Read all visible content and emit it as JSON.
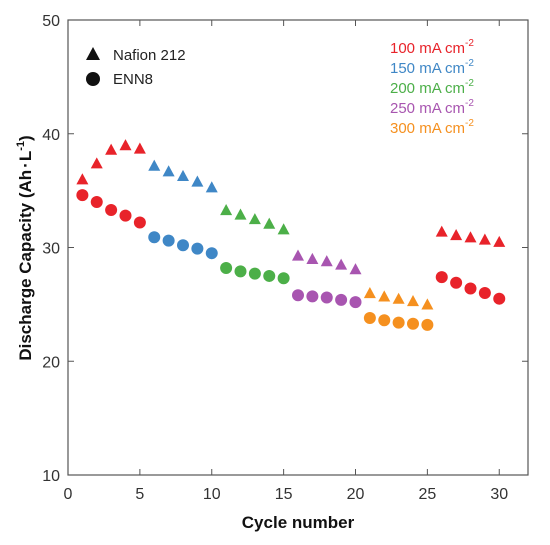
{
  "chart_data": {
    "type": "scatter",
    "title": "",
    "xlabel": "Cycle number",
    "ylabel_main": "Discharge Capacity (Ah",
    "ylabel_dot": "·",
    "ylabel_unit": "L",
    "ylabel_sup": "-1",
    "ylabel_end": ")",
    "xlim": [
      0,
      32
    ],
    "ylim": [
      10,
      50
    ],
    "xticks": [
      "0",
      "5",
      "10",
      "15",
      "20",
      "25",
      "30"
    ],
    "yticks": [
      "10",
      "20",
      "30",
      "40",
      "50"
    ],
    "grid": false,
    "legend_markers": [
      {
        "name": "Nafion 212",
        "marker": "triangle"
      },
      {
        "name": "ENN8",
        "marker": "circle"
      }
    ],
    "current_densities": [
      {
        "label": "100 mA cm",
        "sup": "-2",
        "color": "#e8232a"
      },
      {
        "label": "150 mA cm",
        "sup": "-2",
        "color": "#3f87c6"
      },
      {
        "label": "200 mA cm",
        "sup": "-2",
        "color": "#4caf48"
      },
      {
        "label": "250 mA cm",
        "sup": "-2",
        "color": "#a855b0"
      },
      {
        "label": "300 mA cm",
        "sup": "-2",
        "color": "#f5901f"
      }
    ],
    "series": [
      {
        "name": "Nafion 212",
        "marker": "triangle",
        "x": [
          1,
          2,
          3,
          4,
          5,
          6,
          7,
          8,
          9,
          10,
          11,
          12,
          13,
          14,
          15,
          16,
          17,
          18,
          19,
          20,
          21,
          22,
          23,
          24,
          25,
          26,
          27,
          28,
          29,
          30
        ],
        "y": [
          36.0,
          37.4,
          38.6,
          39.0,
          38.7,
          37.2,
          36.7,
          36.3,
          35.8,
          35.3,
          33.3,
          32.9,
          32.5,
          32.1,
          31.6,
          29.3,
          29.0,
          28.8,
          28.5,
          28.1,
          26.0,
          25.7,
          25.5,
          25.3,
          25.0,
          31.4,
          31.1,
          30.9,
          30.7,
          30.5
        ],
        "colors": [
          "#e8232a",
          "#e8232a",
          "#e8232a",
          "#e8232a",
          "#e8232a",
          "#3f87c6",
          "#3f87c6",
          "#3f87c6",
          "#3f87c6",
          "#3f87c6",
          "#4caf48",
          "#4caf48",
          "#4caf48",
          "#4caf48",
          "#4caf48",
          "#a855b0",
          "#a855b0",
          "#a855b0",
          "#a855b0",
          "#a855b0",
          "#f5901f",
          "#f5901f",
          "#f5901f",
          "#f5901f",
          "#f5901f",
          "#e8232a",
          "#e8232a",
          "#e8232a",
          "#e8232a",
          "#e8232a"
        ]
      },
      {
        "name": "ENN8",
        "marker": "circle",
        "x": [
          1,
          2,
          3,
          4,
          5,
          6,
          7,
          8,
          9,
          10,
          11,
          12,
          13,
          14,
          15,
          16,
          17,
          18,
          19,
          20,
          21,
          22,
          23,
          24,
          25,
          26,
          27,
          28,
          29,
          30
        ],
        "y": [
          34.6,
          34.0,
          33.3,
          32.8,
          32.2,
          30.9,
          30.6,
          30.2,
          29.9,
          29.5,
          28.2,
          27.9,
          27.7,
          27.5,
          27.3,
          25.8,
          25.7,
          25.6,
          25.4,
          25.2,
          23.8,
          23.6,
          23.4,
          23.3,
          23.2,
          27.4,
          26.9,
          26.4,
          26.0,
          25.5
        ],
        "colors": [
          "#e8232a",
          "#e8232a",
          "#e8232a",
          "#e8232a",
          "#e8232a",
          "#3f87c6",
          "#3f87c6",
          "#3f87c6",
          "#3f87c6",
          "#3f87c6",
          "#4caf48",
          "#4caf48",
          "#4caf48",
          "#4caf48",
          "#4caf48",
          "#a855b0",
          "#a855b0",
          "#a855b0",
          "#a855b0",
          "#a855b0",
          "#f5901f",
          "#f5901f",
          "#f5901f",
          "#f5901f",
          "#f5901f",
          "#e8232a",
          "#e8232a",
          "#e8232a",
          "#e8232a",
          "#e8232a"
        ]
      }
    ],
    "marker_color_legend": "#111111"
  }
}
